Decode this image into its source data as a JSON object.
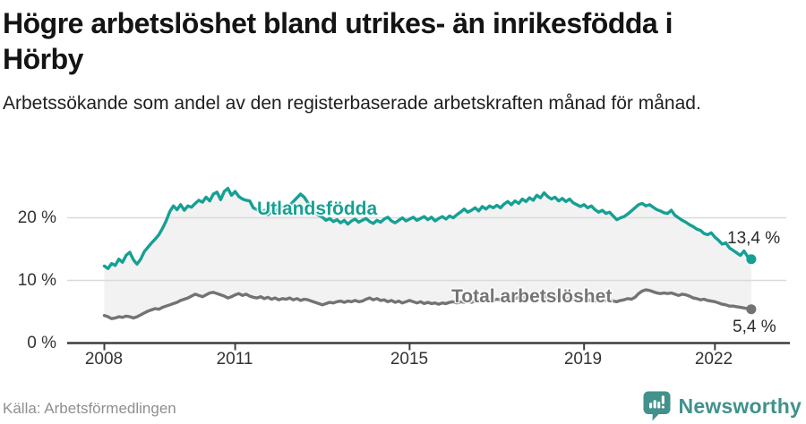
{
  "header": {
    "title": "Högre arbetslöshet bland utrikes- än inrikesfödda i Hörby",
    "subtitle": "Arbetssökande som andel av den registerbaserade arbetskraften månad för månad."
  },
  "footer": {
    "source": "Källa: Arbetsförmedlingen",
    "brand": "Newsworthy"
  },
  "chart_data": {
    "type": "line",
    "unit": "%",
    "frequency": "monthly",
    "x_start": "2008-01",
    "x_end": "2022-11",
    "x_tick_years": [
      2008,
      2011,
      2015,
      2019,
      2022
    ],
    "x_tick_labels": [
      "2008",
      "2011",
      "2015",
      "2019",
      "2022"
    ],
    "y_ticks": [
      0,
      10,
      20
    ],
    "y_tick_labels": [
      "0 %",
      "10 %",
      "20 %"
    ],
    "ylim": [
      0,
      26
    ],
    "grid": "horizontal",
    "band_between_series": true,
    "band_color": "#f2f2f2",
    "axis_color": "#3d3d3d",
    "grid_color": "#dadada",
    "series": [
      {
        "name": "Utlandsfödda",
        "color": "#16a094",
        "end_label": "13,4 %",
        "end_value": 13.4,
        "values": [
          12.3,
          11.9,
          12.7,
          12.4,
          13.4,
          12.9,
          14.0,
          14.5,
          13.3,
          12.6,
          13.4,
          14.6,
          15.3,
          16.0,
          16.6,
          17.3,
          18.3,
          19.5,
          21.0,
          21.9,
          21.3,
          22.1,
          21.2,
          21.9,
          21.7,
          22.3,
          22.8,
          22.5,
          23.3,
          22.7,
          23.8,
          24.1,
          22.9,
          24.2,
          24.7,
          23.6,
          24.2,
          23.4,
          23.0,
          22.8,
          22.7,
          21.6,
          21.3,
          20.8,
          21.2,
          20.5,
          20.9,
          21.1,
          21.4,
          21.8,
          21.3,
          22.0,
          22.6,
          23.2,
          23.8,
          23.3,
          22.4,
          21.6,
          20.9,
          20.4,
          20.1,
          19.6,
          19.9,
          19.4,
          19.7,
          19.2,
          19.6,
          19.0,
          19.5,
          19.8,
          19.3,
          19.6,
          19.9,
          19.4,
          19.1,
          19.6,
          19.3,
          19.8,
          20.1,
          19.5,
          19.2,
          19.6,
          20.0,
          19.5,
          19.8,
          20.1,
          19.6,
          19.9,
          20.2,
          19.7,
          20.1,
          19.5,
          19.9,
          20.2,
          19.8,
          20.3,
          20.0,
          20.5,
          20.9,
          21.4,
          20.9,
          21.2,
          21.6,
          21.1,
          21.8,
          21.4,
          21.9,
          21.6,
          22.0,
          21.6,
          22.2,
          22.6,
          22.1,
          22.7,
          22.3,
          23.0,
          22.6,
          23.2,
          22.8,
          23.6,
          23.2,
          24.0,
          23.4,
          23.0,
          23.3,
          22.7,
          23.1,
          22.6,
          23.0,
          22.4,
          22.1,
          21.8,
          22.1,
          21.6,
          21.9,
          21.3,
          20.9,
          21.2,
          20.7,
          20.9,
          20.3,
          19.7,
          20.0,
          20.2,
          20.6,
          21.1,
          21.6,
          22.1,
          22.3,
          21.9,
          22.1,
          21.7,
          21.3,
          21.1,
          20.8,
          20.7,
          21.2,
          20.4,
          20.0,
          19.6,
          19.3,
          18.9,
          18.6,
          18.2,
          18.0,
          17.5,
          17.3,
          17.6,
          16.9,
          16.4,
          15.8,
          16.0,
          15.2,
          14.8,
          14.4,
          14.0,
          14.7,
          13.8,
          13.4
        ]
      },
      {
        "name": "Total arbetslöshet",
        "color": "#737373",
        "end_label": "5,4 %",
        "end_value": 5.4,
        "values": [
          4.4,
          4.2,
          3.9,
          4.0,
          4.2,
          4.1,
          4.3,
          4.2,
          4.0,
          4.2,
          4.5,
          4.8,
          5.1,
          5.3,
          5.5,
          5.4,
          5.7,
          5.9,
          6.1,
          6.3,
          6.5,
          6.8,
          7.0,
          7.2,
          7.5,
          7.8,
          7.6,
          7.4,
          7.7,
          8.0,
          8.1,
          7.9,
          7.7,
          7.5,
          7.2,
          7.4,
          7.7,
          7.9,
          7.6,
          7.8,
          7.5,
          7.3,
          7.2,
          7.4,
          7.1,
          7.3,
          7.0,
          7.2,
          6.9,
          7.1,
          7.0,
          7.2,
          6.9,
          7.1,
          6.8,
          7.0,
          6.9,
          6.7,
          6.5,
          6.3,
          6.1,
          6.3,
          6.5,
          6.4,
          6.6,
          6.7,
          6.5,
          6.7,
          6.6,
          6.8,
          6.6,
          6.7,
          7.0,
          7.2,
          6.9,
          7.1,
          6.8,
          6.9,
          6.6,
          6.8,
          6.5,
          6.7,
          6.4,
          6.6,
          6.8,
          6.6,
          6.4,
          6.6,
          6.3,
          6.5,
          6.3,
          6.4,
          6.2,
          6.4,
          6.3,
          6.5,
          6.6,
          6.4,
          6.6,
          6.5,
          6.7,
          6.5,
          6.7,
          6.6,
          6.8,
          6.7,
          6.9,
          6.8,
          7.0,
          6.9,
          7.1,
          7.0,
          7.2,
          7.1,
          7.3,
          7.2,
          7.4,
          7.3,
          7.2,
          7.4,
          7.3,
          7.5,
          7.3,
          7.2,
          7.4,
          7.1,
          7.3,
          7.0,
          7.2,
          6.9,
          7.1,
          6.8,
          7.0,
          6.8,
          6.9,
          6.7,
          6.8,
          6.6,
          6.8,
          6.9,
          6.7,
          6.6,
          6.8,
          6.9,
          7.1,
          7.0,
          7.3,
          7.9,
          8.3,
          8.5,
          8.4,
          8.2,
          8.0,
          7.9,
          8.0,
          7.9,
          8.0,
          7.8,
          7.6,
          7.8,
          7.7,
          7.5,
          7.2,
          7.1,
          6.9,
          7.0,
          6.8,
          6.7,
          6.6,
          6.4,
          6.2,
          6.1,
          5.9,
          5.9,
          5.8,
          5.7,
          5.6,
          5.5,
          5.4
        ]
      }
    ]
  }
}
